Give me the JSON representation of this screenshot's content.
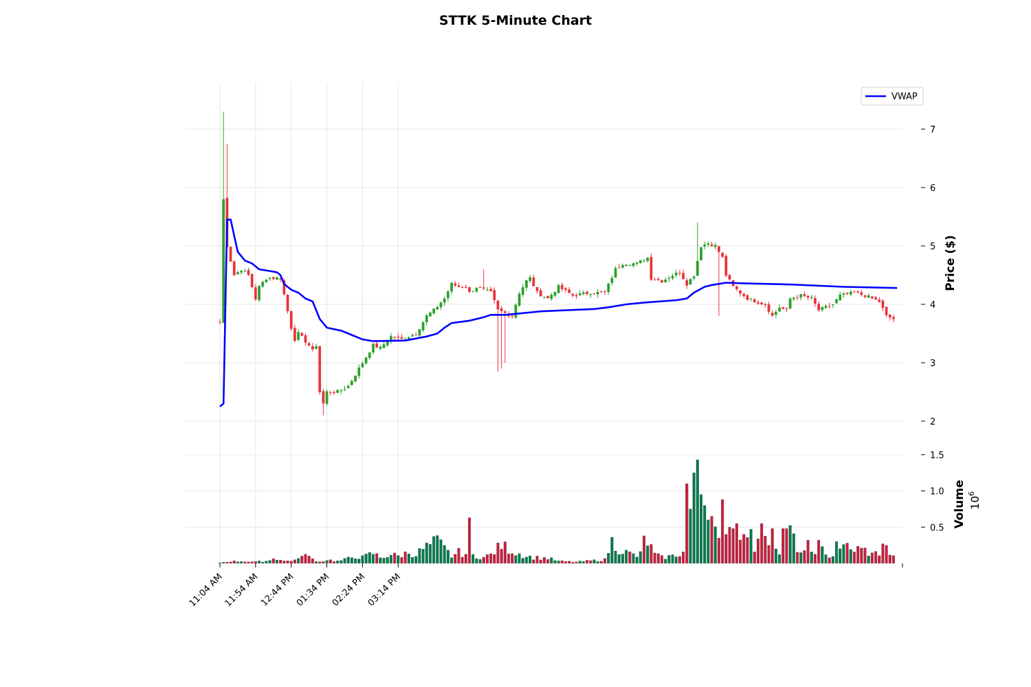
{
  "chart_data": {
    "type": "candlestick",
    "title": "STTK 5-Minute Chart",
    "x_tick_labels": [
      "11:04 AM",
      "11:54 AM",
      "12:44 PM",
      "01:34 PM",
      "02:24 PM",
      "03:14 PM"
    ],
    "price_panel": {
      "ylabel": "Price ($)",
      "ylim": [
        1.8,
        7.8
      ],
      "yticks": [
        2,
        3,
        4,
        5,
        6,
        7
      ],
      "ytick_labels": [
        "2",
        "3",
        "4",
        "5",
        "6",
        "7"
      ]
    },
    "volume_panel": {
      "ylabel": "Volume",
      "multiplier_label": "10",
      "multiplier_exponent": "6",
      "ylim": [
        0,
        1.65
      ],
      "yticks": [
        0.5,
        1.0,
        1.5
      ],
      "ytick_labels": [
        "0.5",
        "1.0",
        "1.5"
      ]
    },
    "colors": {
      "up": "#2ca02c",
      "down": "#e8333c",
      "vol_up": "#007a4d",
      "vol_down": "#c81e3c",
      "vwap": "#0000ff",
      "grid": "#e6e6e6"
    },
    "legend": {
      "position": "upper right",
      "entries": [
        "VWAP"
      ]
    },
    "grid": true,
    "bar_interval_minutes": 5,
    "close_anchors": [
      [
        0,
        3.7
      ],
      [
        1,
        5.8
      ],
      [
        2,
        5.0
      ],
      [
        4,
        4.5
      ],
      [
        6,
        4.6
      ],
      [
        8,
        4.5
      ],
      [
        10,
        4.1
      ],
      [
        11,
        4.3
      ],
      [
        13,
        4.45
      ],
      [
        17,
        4.45
      ],
      [
        20,
        3.6
      ],
      [
        21,
        3.4
      ],
      [
        22,
        3.5
      ],
      [
        25,
        3.3
      ],
      [
        26,
        3.2
      ],
      [
        27,
        3.3
      ],
      [
        28,
        2.5
      ],
      [
        29,
        2.3
      ],
      [
        30,
        2.5
      ],
      [
        33,
        2.5
      ],
      [
        36,
        2.6
      ],
      [
        38,
        2.8
      ],
      [
        41,
        3.1
      ],
      [
        43,
        3.3
      ],
      [
        45,
        3.25
      ],
      [
        48,
        3.45
      ],
      [
        51,
        3.4
      ],
      [
        55,
        3.5
      ],
      [
        58,
        3.8
      ],
      [
        60,
        3.9
      ],
      [
        63,
        4.1
      ],
      [
        65,
        4.35
      ],
      [
        67,
        4.3
      ],
      [
        69,
        4.3
      ],
      [
        70,
        4.2
      ],
      [
        72,
        4.3
      ],
      [
        76,
        4.2
      ],
      [
        78,
        3.9
      ],
      [
        82,
        3.8
      ],
      [
        84,
        4.2
      ],
      [
        85,
        4.3
      ],
      [
        86,
        4.4
      ],
      [
        87,
        4.45
      ],
      [
        89,
        4.2
      ],
      [
        92,
        4.1
      ],
      [
        95,
        4.3
      ],
      [
        99,
        4.15
      ],
      [
        104,
        4.2
      ],
      [
        108,
        4.2
      ],
      [
        111,
        4.6
      ],
      [
        113,
        4.7
      ],
      [
        117,
        4.7
      ],
      [
        120,
        4.8
      ],
      [
        121,
        4.45
      ],
      [
        124,
        4.4
      ],
      [
        127,
        4.5
      ],
      [
        129,
        4.55
      ],
      [
        131,
        4.35
      ],
      [
        133,
        4.5
      ],
      [
        135,
        5.0
      ],
      [
        137,
        5.05
      ],
      [
        139,
        5.0
      ],
      [
        141,
        4.8
      ],
      [
        142,
        4.5
      ],
      [
        144,
        4.3
      ],
      [
        146,
        4.2
      ],
      [
        148,
        4.1
      ],
      [
        153,
        4.0
      ],
      [
        155,
        3.8
      ],
      [
        157,
        3.95
      ],
      [
        159,
        3.9
      ],
      [
        160,
        4.1
      ],
      [
        163,
        4.15
      ],
      [
        166,
        4.1
      ],
      [
        168,
        3.9
      ],
      [
        172,
        4.0
      ],
      [
        174,
        4.15
      ],
      [
        178,
        4.2
      ],
      [
        181,
        4.15
      ],
      [
        185,
        4.05
      ],
      [
        187,
        3.8
      ],
      [
        189,
        3.75
      ]
    ],
    "vwap_anchors": [
      [
        0,
        2.25
      ],
      [
        1,
        2.3
      ],
      [
        2,
        5.45
      ],
      [
        3,
        5.45
      ],
      [
        5,
        4.9
      ],
      [
        7,
        4.75
      ],
      [
        9,
        4.7
      ],
      [
        11,
        4.6
      ],
      [
        14,
        4.57
      ],
      [
        16,
        4.55
      ],
      [
        17,
        4.5
      ],
      [
        18,
        4.35
      ],
      [
        20,
        4.25
      ],
      [
        22,
        4.2
      ],
      [
        24,
        4.1
      ],
      [
        26,
        4.05
      ],
      [
        28,
        3.75
      ],
      [
        30,
        3.6
      ],
      [
        34,
        3.55
      ],
      [
        36,
        3.5
      ],
      [
        40,
        3.4
      ],
      [
        43,
        3.37
      ],
      [
        52,
        3.38
      ],
      [
        58,
        3.45
      ],
      [
        61,
        3.5
      ],
      [
        63,
        3.6
      ],
      [
        65,
        3.68
      ],
      [
        70,
        3.72
      ],
      [
        74,
        3.78
      ],
      [
        76,
        3.82
      ],
      [
        80,
        3.82
      ],
      [
        85,
        3.85
      ],
      [
        90,
        3.88
      ],
      [
        105,
        3.92
      ],
      [
        109,
        3.95
      ],
      [
        114,
        4.0
      ],
      [
        119,
        4.03
      ],
      [
        128,
        4.07
      ],
      [
        131,
        4.1
      ],
      [
        133,
        4.2
      ],
      [
        136,
        4.3
      ],
      [
        138,
        4.33
      ],
      [
        140,
        4.35
      ],
      [
        142,
        4.37
      ],
      [
        147,
        4.36
      ],
      [
        160,
        4.34
      ],
      [
        175,
        4.3
      ],
      [
        190,
        4.28
      ]
    ],
    "volume_anchors": [
      [
        0,
        0.01
      ],
      [
        2,
        0.02
      ],
      [
        5,
        0.03
      ],
      [
        10,
        0.02
      ],
      [
        14,
        0.04
      ],
      [
        15,
        0.08
      ],
      [
        18,
        0.03
      ],
      [
        22,
        0.05
      ],
      [
        23,
        0.15
      ],
      [
        25,
        0.08
      ],
      [
        28,
        0.02
      ],
      [
        30,
        0.05
      ],
      [
        33,
        0.03
      ],
      [
        35,
        0.05
      ],
      [
        38,
        0.1
      ],
      [
        40,
        0.08
      ],
      [
        43,
        0.14
      ],
      [
        45,
        0.08
      ],
      [
        48,
        0.12
      ],
      [
        50,
        0.1
      ],
      [
        53,
        0.15
      ],
      [
        55,
        0.12
      ],
      [
        57,
        0.2
      ],
      [
        59,
        0.25
      ],
      [
        61,
        0.3
      ],
      [
        63,
        0.2
      ],
      [
        65,
        0.1
      ],
      [
        67,
        0.15
      ],
      [
        70,
        0.12
      ],
      [
        72,
        0.1
      ],
      [
        74,
        0.08
      ],
      [
        76,
        0.12
      ],
      [
        79,
        0.25
      ],
      [
        81,
        0.2
      ],
      [
        83,
        0.15
      ],
      [
        86,
        0.1
      ],
      [
        88,
        0.08
      ],
      [
        92,
        0.07
      ],
      [
        95,
        0.03
      ],
      [
        100,
        0.02
      ],
      [
        105,
        0.04
      ],
      [
        108,
        0.05
      ],
      [
        110,
        0.3
      ],
      [
        112,
        0.2
      ],
      [
        114,
        0.15
      ],
      [
        117,
        0.1
      ],
      [
        119,
        0.15
      ],
      [
        120,
        0.3
      ],
      [
        122,
        0.12
      ],
      [
        124,
        0.08
      ],
      [
        127,
        0.1
      ],
      [
        130,
        0.15
      ],
      [
        131,
        0.9
      ],
      [
        132,
        1.1
      ],
      [
        133,
        0.85
      ],
      [
        134,
        0.65
      ],
      [
        135,
        0.3
      ],
      [
        136,
        0.35
      ],
      [
        137,
        0.4
      ],
      [
        138,
        0.5
      ],
      [
        140,
        0.45
      ],
      [
        141,
        0.25
      ],
      [
        142,
        0.3
      ],
      [
        144,
        0.28
      ],
      [
        146,
        0.3
      ],
      [
        147,
        0.25
      ],
      [
        148,
        0.55
      ],
      [
        150,
        0.2
      ],
      [
        152,
        0.3
      ],
      [
        153,
        0.45
      ],
      [
        155,
        0.2
      ],
      [
        157,
        0.15
      ],
      [
        159,
        0.25
      ],
      [
        160,
        0.5
      ],
      [
        161,
        0.3
      ],
      [
        163,
        0.15
      ],
      [
        165,
        0.12
      ],
      [
        168,
        0.25
      ],
      [
        170,
        0.1
      ],
      [
        172,
        0.12
      ],
      [
        174,
        0.25
      ],
      [
        176,
        0.15
      ],
      [
        178,
        0.2
      ],
      [
        181,
        0.18
      ],
      [
        183,
        0.12
      ],
      [
        185,
        0.15
      ],
      [
        187,
        0.2
      ],
      [
        189,
        0.08
      ]
    ],
    "volume_spikes": [
      [
        70,
        0.63
      ],
      [
        119,
        0.38
      ],
      [
        131,
        1.1
      ],
      [
        132,
        0.75
      ],
      [
        133,
        1.25
      ],
      [
        134,
        1.43
      ],
      [
        135,
        0.95
      ],
      [
        136,
        0.8
      ],
      [
        137,
        0.6
      ],
      [
        138,
        0.65
      ],
      [
        140,
        0.35
      ],
      [
        141,
        0.88
      ],
      [
        142,
        0.4
      ],
      [
        143,
        0.5
      ],
      [
        144,
        0.48
      ],
      [
        145,
        0.55
      ],
      [
        147,
        0.4
      ],
      [
        152,
        0.55
      ],
      [
        155,
        0.48
      ],
      [
        158,
        0.48
      ],
      [
        159,
        0.48
      ],
      [
        165,
        0.32
      ],
      [
        173,
        0.3
      ],
      [
        176,
        0.28
      ],
      [
        186,
        0.27
      ],
      [
        3,
        0.02
      ]
    ],
    "spikes": [
      [
        1,
        7.3,
        3.7
      ],
      [
        2,
        6.75,
        null
      ],
      [
        64,
        null,
        4.05
      ],
      [
        74,
        4.6,
        null
      ],
      [
        78,
        null,
        2.85
      ],
      [
        79,
        null,
        2.9
      ],
      [
        80,
        null,
        3.0
      ],
      [
        134,
        5.4,
        null
      ],
      [
        140,
        null,
        3.8
      ],
      [
        29,
        null,
        2.1
      ]
    ]
  }
}
